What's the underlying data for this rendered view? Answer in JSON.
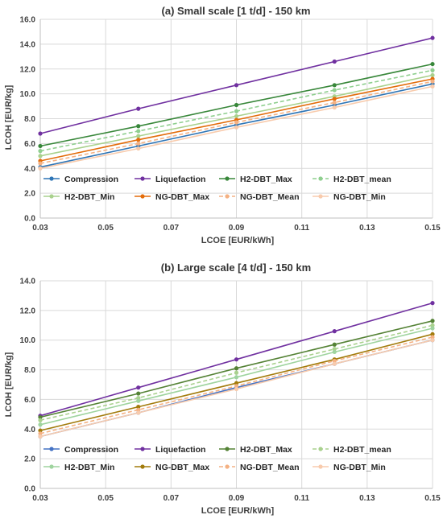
{
  "chart_data": [
    {
      "type": "line",
      "title": "(a) Small scale [1 t/d] - 150 km",
      "xlabel": "LCOE [EUR/kWh]",
      "ylabel": "LCOH [EUR/kg]",
      "x": [
        0.03,
        0.06,
        0.09,
        0.12,
        0.15
      ],
      "xlim": [
        0.03,
        0.15
      ],
      "ylim": [
        0,
        16
      ],
      "xticks": [
        "0.03",
        "0.05",
        "0.07",
        "0.09",
        "0.11",
        "0.13",
        "0.15"
      ],
      "yticks": [
        "0.0",
        "2.0",
        "4.0",
        "6.0",
        "8.0",
        "10.0",
        "12.0",
        "14.0",
        "16.0"
      ],
      "grid": true,
      "legend_position": "bottom-inside",
      "series": [
        {
          "name": "Compression",
          "color": "#2e75b6",
          "dashed": false,
          "values": [
            4.1,
            5.8,
            7.5,
            9.1,
            10.8
          ]
        },
        {
          "name": "Liquefaction",
          "color": "#7030a0",
          "dashed": false,
          "values": [
            6.8,
            8.8,
            10.7,
            12.6,
            14.5
          ]
        },
        {
          "name": "H2-DBT_Max",
          "color": "#38873a",
          "dashed": false,
          "values": [
            5.8,
            7.4,
            9.1,
            10.7,
            12.4
          ]
        },
        {
          "name": "H2-DBT_mean",
          "color": "#8fcf8f",
          "dashed": true,
          "values": [
            5.4,
            7.0,
            8.6,
            10.3,
            11.9
          ]
        },
        {
          "name": "H2-DBT_Min",
          "color": "#a9d18e",
          "dashed": false,
          "values": [
            5.0,
            6.6,
            8.2,
            9.8,
            11.5
          ]
        },
        {
          "name": "NG-DBT_Max",
          "color": "#e36c0a",
          "dashed": false,
          "values": [
            4.6,
            6.3,
            7.9,
            9.6,
            11.2
          ]
        },
        {
          "name": "NG-DBT_Mean",
          "color": "#f4b183",
          "dashed": true,
          "values": [
            4.4,
            6.0,
            7.7,
            9.3,
            11.0
          ]
        },
        {
          "name": "NG-DBT_Min",
          "color": "#f8cbad",
          "dashed": false,
          "values": [
            4.0,
            5.6,
            7.3,
            8.9,
            10.6
          ]
        }
      ]
    },
    {
      "type": "line",
      "title": "(b) Large scale [4 t/d] - 150 km",
      "xlabel": "LCOE [EUR/kWh]",
      "ylabel": "LCOH [EUR/kg]",
      "x": [
        0.03,
        0.06,
        0.09,
        0.12,
        0.15
      ],
      "xlim": [
        0.03,
        0.15
      ],
      "ylim": [
        0,
        14
      ],
      "xticks": [
        "0.03",
        "0.05",
        "0.07",
        "0.09",
        "0.11",
        "0.13",
        "0.15"
      ],
      "yticks": [
        "0.0",
        "2.0",
        "4.0",
        "6.0",
        "8.0",
        "10.0",
        "12.0",
        "14.0"
      ],
      "grid": true,
      "legend_position": "bottom-inside",
      "series": [
        {
          "name": "Compression",
          "color": "#4472c4",
          "dashed": false,
          "values": [
            3.5,
            5.1,
            6.8,
            8.4,
            10.0
          ]
        },
        {
          "name": "Liquefaction",
          "color": "#7030a0",
          "dashed": false,
          "values": [
            4.9,
            6.8,
            8.7,
            10.6,
            12.5
          ]
        },
        {
          "name": "H2-DBT_Max",
          "color": "#548235",
          "dashed": false,
          "values": [
            4.8,
            6.4,
            8.1,
            9.7,
            11.3
          ]
        },
        {
          "name": "H2-DBT_mean",
          "color": "#a9d18e",
          "dashed": true,
          "values": [
            4.6,
            6.1,
            7.8,
            9.4,
            11.0
          ]
        },
        {
          "name": "H2-DBT_Min",
          "color": "#9fd49f",
          "dashed": false,
          "values": [
            4.3,
            5.9,
            7.5,
            9.2,
            10.8
          ]
        },
        {
          "name": "NG-DBT_Max",
          "color": "#a27b0c",
          "dashed": false,
          "values": [
            3.9,
            5.5,
            7.1,
            8.7,
            10.4
          ]
        },
        {
          "name": "NG-DBT_Mean",
          "color": "#f4b183",
          "dashed": true,
          "values": [
            3.7,
            5.3,
            6.9,
            8.6,
            10.2
          ]
        },
        {
          "name": "NG-DBT_Min",
          "color": "#f8cbad",
          "dashed": false,
          "values": [
            3.5,
            5.1,
            6.7,
            8.4,
            10.0
          ]
        }
      ]
    }
  ]
}
